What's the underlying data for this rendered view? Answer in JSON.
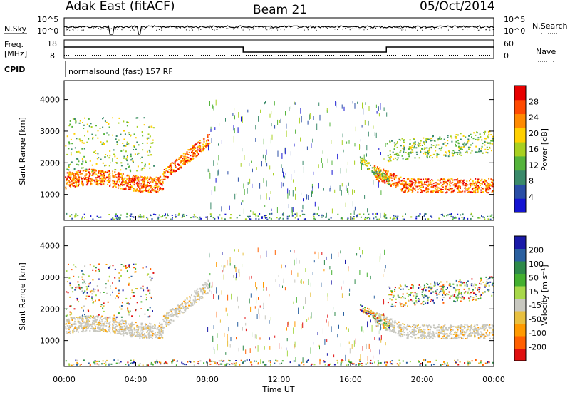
{
  "header": {
    "station": "Adak East (fitACF)",
    "beam": "Beam 21",
    "date": "05/Oct/2014"
  },
  "status_panels": {
    "nsky_label": "N.Sky",
    "nsearch_label": "N.Search",
    "noise_ticks_left": [
      "10^5",
      "10^0"
    ],
    "noise_ticks_right": [
      "10^5",
      "10^0"
    ],
    "freq_label": "Freq.",
    "freq_unit": "[MHz]",
    "freq_ticks": [
      "18",
      "8"
    ],
    "nave_label": "Nave",
    "nave_ticks": [
      "60",
      "0"
    ],
    "cpid_label": "CPID",
    "cpid_text": "normalsound (fast) 157 RF"
  },
  "chart_data": [
    {
      "type": "heatmap",
      "name": "power",
      "ylabel": "Slant Range [km]",
      "xlabel": "",
      "ylim": [
        180,
        4600
      ],
      "yticks": [
        "1000",
        "2000",
        "3000",
        "4000"
      ],
      "colorbar_label": "Power [dB]",
      "colorbar_ticks": [
        "4",
        "8",
        "12",
        "16",
        "20",
        "24",
        "28"
      ],
      "colorbar_colors": [
        "#1414d2",
        "#2a4ea6",
        "#3a8a6a",
        "#55b43c",
        "#a8d020",
        "#ffd000",
        "#ff8a00",
        "#ff4a00",
        "#e80000"
      ]
    },
    {
      "type": "heatmap",
      "name": "velocity",
      "ylabel": "Slant Range [km]",
      "xlabel": "Time UT",
      "ylim": [
        180,
        4600
      ],
      "yticks": [
        "1000",
        "2000",
        "3000",
        "4000"
      ],
      "xticks": [
        "00:00",
        "04:00",
        "08:00",
        "12:00",
        "16:00",
        "20:00",
        "00:00"
      ],
      "colorbar_label": "Velocity [m s⁻¹]",
      "colorbar_ticks": [
        "200",
        "100",
        "50",
        "15",
        "-15",
        "-50",
        "-100",
        "-200"
      ],
      "colorbar_colors": [
        "#1a1aa8",
        "#2a60a0",
        "#2e8a4a",
        "#44b030",
        "#a8d84a",
        "#c8c8c0",
        "#e8c040",
        "#ff9a00",
        "#ff6000",
        "#e01010"
      ]
    }
  ]
}
